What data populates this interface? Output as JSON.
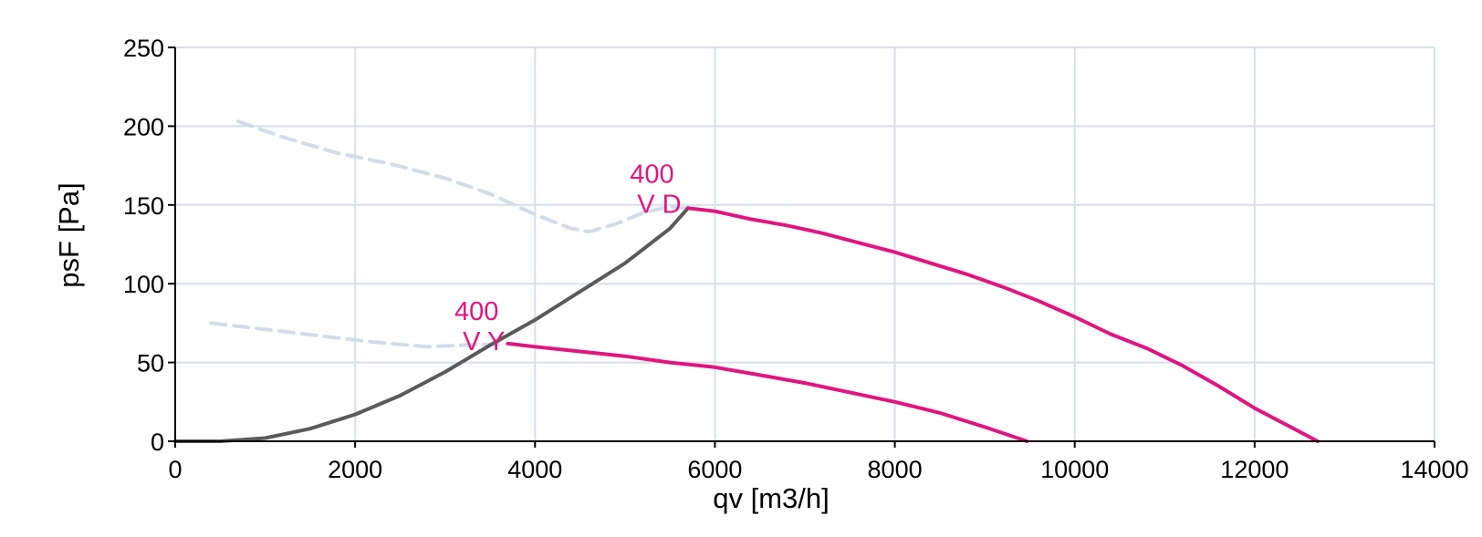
{
  "chart_data": {
    "type": "line",
    "xlabel": "qv [m3/h]",
    "ylabel": "psF [Pa]",
    "xlim": [
      0,
      14000
    ],
    "ylim": [
      0,
      250
    ],
    "x_ticks": [
      "0",
      "2000",
      "4000",
      "6000",
      "8000",
      "10000",
      "12000",
      "14000"
    ],
    "y_ticks": [
      "0",
      "50",
      "100",
      "150",
      "200",
      "250"
    ],
    "grid": true,
    "colors": {
      "curve": "#e0157f",
      "system": "#5a5a5a",
      "stall": "#d2dce8",
      "grid": "#d8dfe8",
      "axis": "#000000"
    },
    "series": [
      {
        "style": "solid-magenta",
        "x": [
          5700,
          6000,
          6400,
          6800,
          7200,
          7600,
          8000,
          8400,
          8800,
          9200,
          9600,
          10000,
          10400,
          10800,
          11200,
          11600,
          12000,
          12400,
          12700
        ],
        "y": [
          148,
          146,
          141,
          137,
          132,
          126,
          120,
          113,
          106,
          98,
          89,
          79,
          68,
          59,
          48,
          35,
          21,
          9,
          0
        ]
      },
      {
        "style": "solid-magenta",
        "x": [
          3700,
          4000,
          4500,
          5000,
          5500,
          6000,
          6500,
          7000,
          7500,
          8000,
          8500,
          9000,
          9470
        ],
        "y": [
          62,
          60,
          57,
          54,
          50,
          47,
          42,
          37,
          31,
          25,
          18,
          9,
          0
        ]
      },
      {
        "style": "solid-gray",
        "x": [
          0,
          500,
          1000,
          1500,
          2000,
          2500,
          3000,
          3500,
          4000,
          4500,
          5000,
          5500,
          5700
        ],
        "y": [
          0,
          0,
          2,
          8,
          17,
          29,
          44,
          61,
          77,
          95,
          113,
          135,
          148
        ]
      },
      {
        "style": "dashed-light",
        "x": [
          700,
          1200,
          1800,
          2400,
          3000,
          3500,
          4000,
          4400,
          4600,
          4900,
          5200,
          5500,
          5700
        ],
        "y": [
          203,
          193,
          183,
          176,
          167,
          157,
          144,
          135,
          133,
          138,
          145,
          149,
          148
        ]
      },
      {
        "style": "dashed-light",
        "x": [
          400,
          1000,
          1600,
          2200,
          2800,
          3200,
          3700
        ],
        "y": [
          75,
          71,
          67,
          63,
          60,
          61,
          62
        ]
      }
    ],
    "annotations": [
      {
        "lines": [
          "400",
          "V D"
        ],
        "x": 5300,
        "y": 157,
        "color": "#e0157f"
      },
      {
        "lines": [
          "400",
          "V Y"
        ],
        "x": 3350,
        "y": 70,
        "color": "#e0157f"
      }
    ]
  }
}
